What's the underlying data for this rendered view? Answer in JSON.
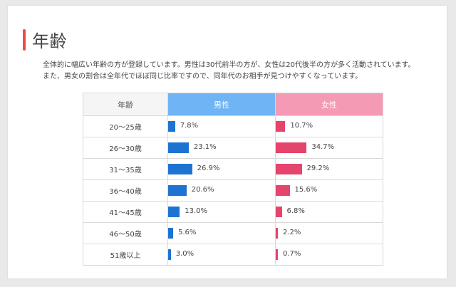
{
  "section": {
    "title": "年齢",
    "description_lines": [
      "全体的に幅広い年齢の方が登録しています。男性は30代前半の方が、女性は20代後半の方が多く活動されています。",
      "また、男女の割合は全年代でほぼ同じ比率ですので、同年代のお相手が見つけやすくなっています。"
    ]
  },
  "table": {
    "headers": {
      "age": "年齢",
      "male": "男性",
      "female": "女性"
    },
    "rows": [
      {
        "age": "20〜25歳",
        "male": 7.8,
        "male_label": "7.8%",
        "female": 10.7,
        "female_label": "10.7%"
      },
      {
        "age": "26〜30歳",
        "male": 23.1,
        "male_label": "23.1%",
        "female": 34.7,
        "female_label": "34.7%"
      },
      {
        "age": "31〜35歳",
        "male": 26.9,
        "male_label": "26.9%",
        "female": 29.2,
        "female_label": "29.2%"
      },
      {
        "age": "36〜40歳",
        "male": 20.6,
        "male_label": "20.6%",
        "female": 15.6,
        "female_label": "15.6%"
      },
      {
        "age": "41〜45歳",
        "male": 13.0,
        "male_label": "13.0%",
        "female": 6.8,
        "female_label": "6.8%"
      },
      {
        "age": "46〜50歳",
        "male": 5.6,
        "male_label": "5.6%",
        "female": 2.2,
        "female_label": "2.2%"
      },
      {
        "age": "51歳以上",
        "male": 3.0,
        "male_label": "3.0%",
        "female": 0.7,
        "female_label": "0.7%"
      }
    ]
  },
  "colors": {
    "accent": "#ef4b4b",
    "male_header": "#6fb4f5",
    "male_bar": "#1e73d2",
    "female_header": "#f59ab4",
    "female_bar": "#e5456c"
  }
}
